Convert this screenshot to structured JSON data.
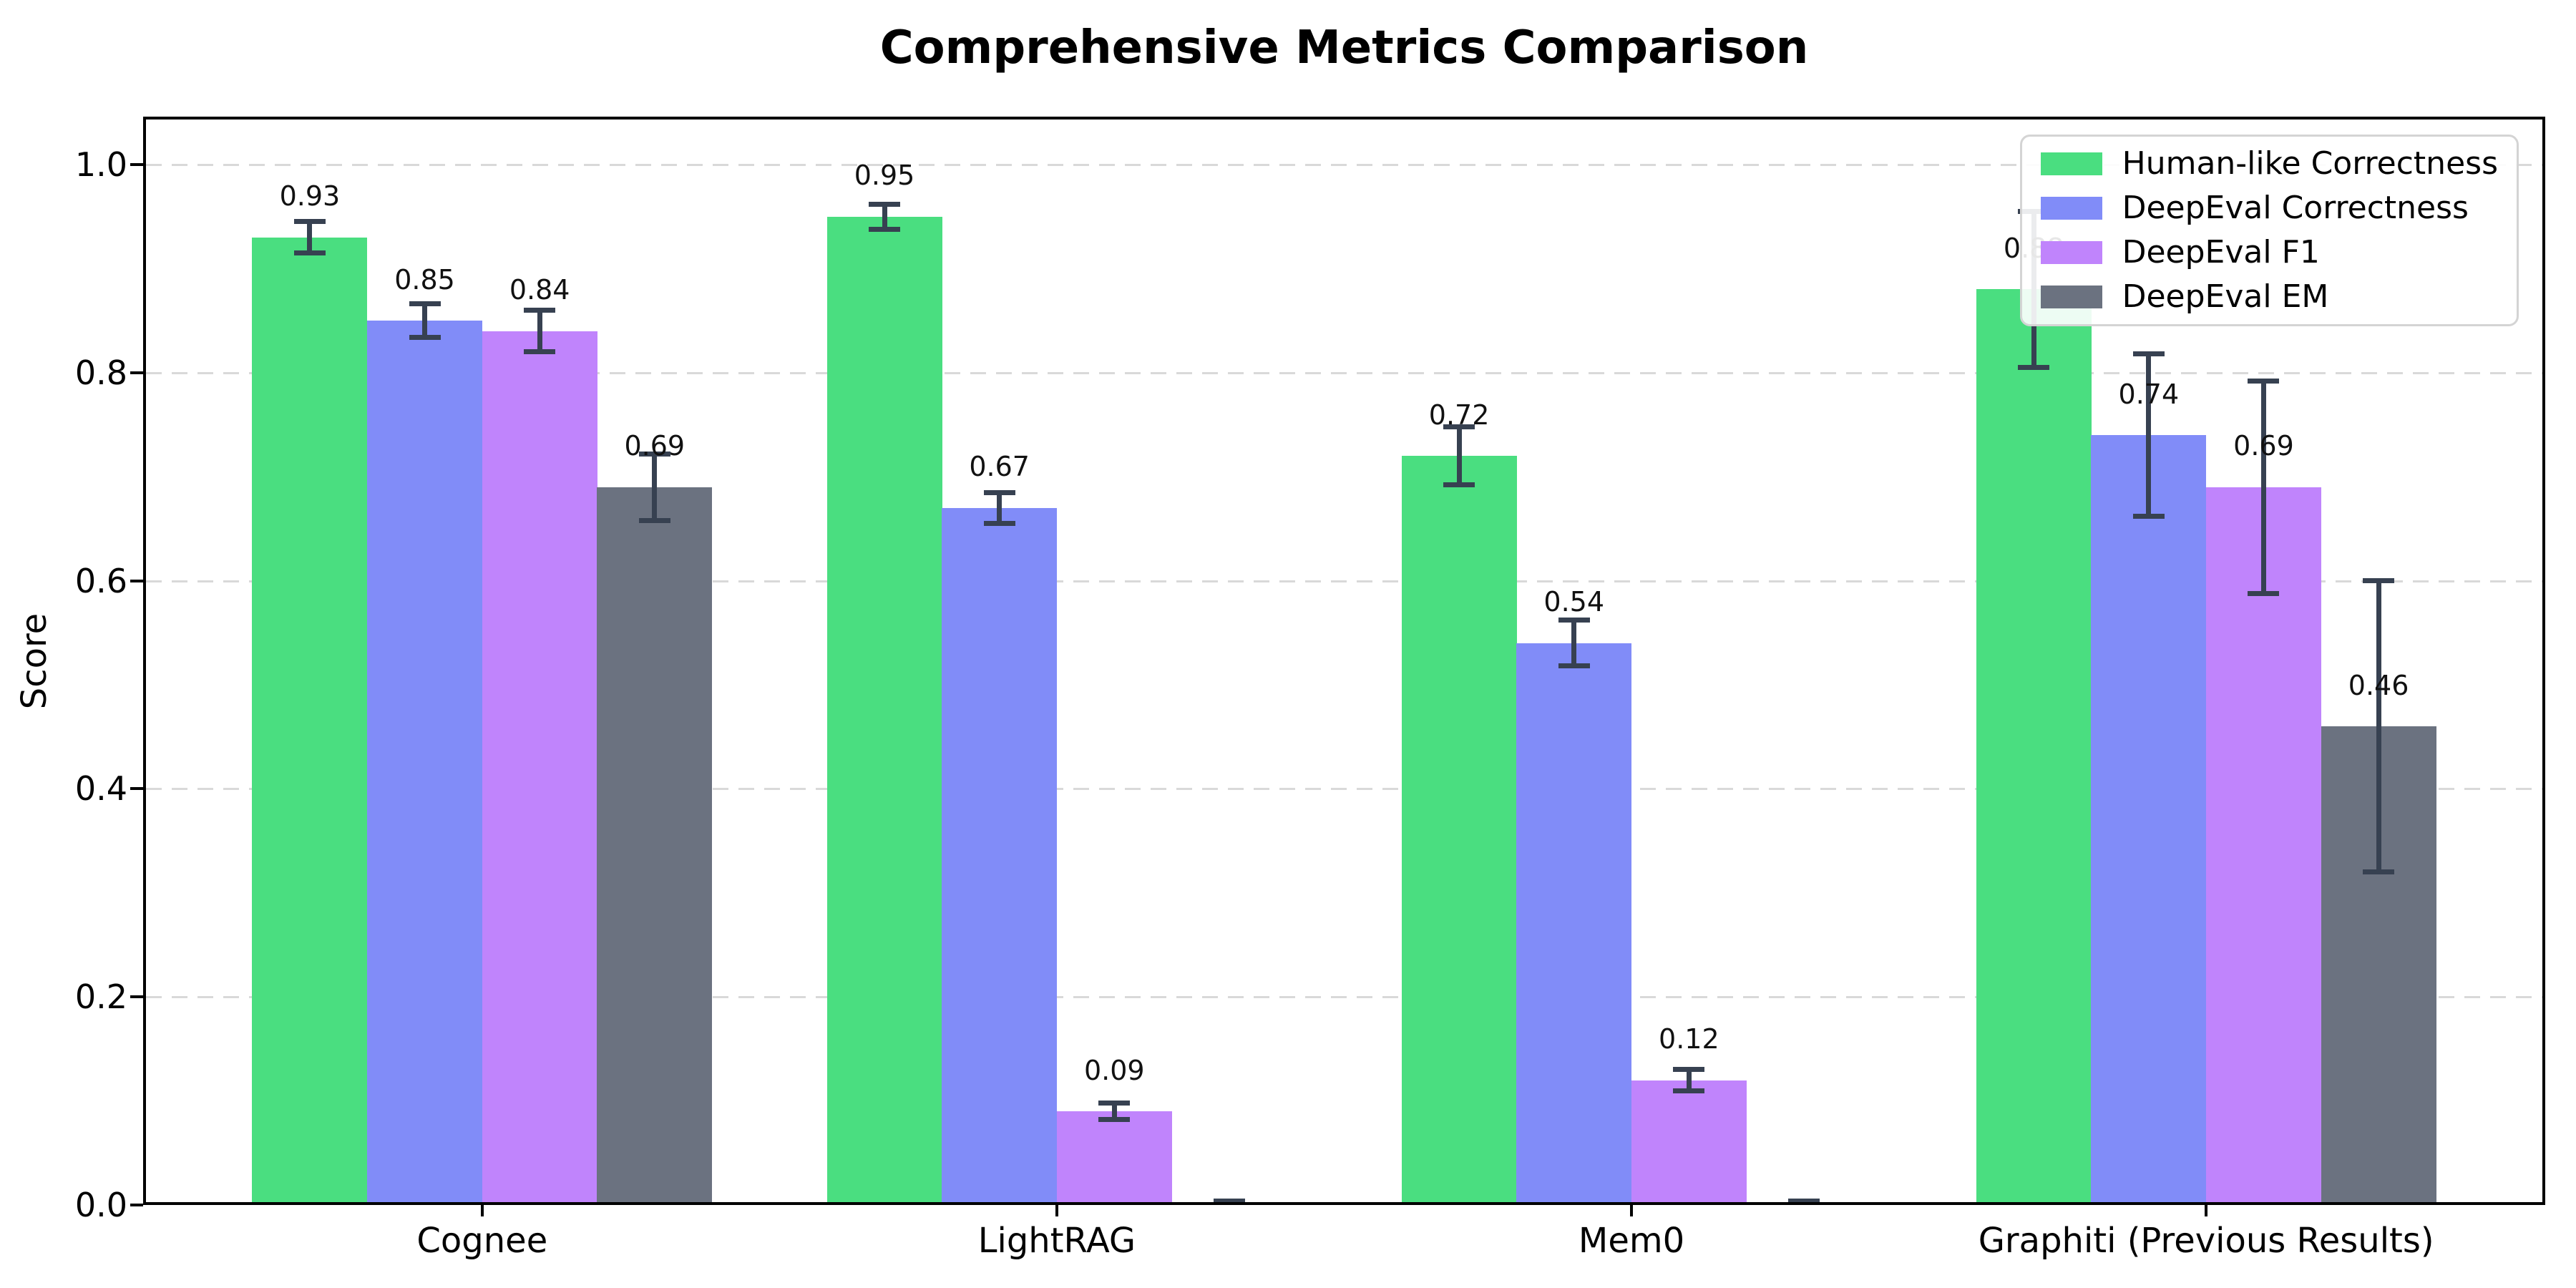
{
  "title": "Comprehensive Metrics Comparison",
  "axes": {
    "ylabel": "Score",
    "yticks": [
      "0.0",
      "0.2",
      "0.4",
      "0.6",
      "0.8",
      "1.0"
    ]
  },
  "chart_data": {
    "type": "bar",
    "title": "Comprehensive Metrics Comparison",
    "xlabel": "",
    "ylabel": "Score",
    "ylim": [
      0,
      1.046
    ],
    "yticks": [
      0.0,
      0.2,
      0.4,
      0.6,
      0.8,
      1.0
    ],
    "grid": "horizontal-dashed",
    "legend_position": "upper-right",
    "error_bar_color": "#374151",
    "categories": [
      "Cognee",
      "LightRAG",
      "Mem0",
      "Graphiti (Previous Results)"
    ],
    "series": [
      {
        "name": "Human-like Correctness",
        "color": "#4ade80",
        "values": [
          0.93,
          0.95,
          0.72,
          0.88
        ],
        "errors": [
          0.015,
          0.012,
          0.028,
          0.075
        ],
        "labels": [
          "0.93",
          "0.95",
          "0.72",
          "0.88"
        ]
      },
      {
        "name": "DeepEval Correctness",
        "color": "#818cf8",
        "values": [
          0.85,
          0.67,
          0.54,
          0.74
        ],
        "errors": [
          0.016,
          0.015,
          0.022,
          0.078
        ],
        "labels": [
          "0.85",
          "0.67",
          "0.54",
          "0.74"
        ]
      },
      {
        "name": "DeepEval F1",
        "color": "#c084fc",
        "values": [
          0.84,
          0.09,
          0.12,
          0.69
        ],
        "errors": [
          0.02,
          0.008,
          0.01,
          0.102
        ],
        "labels": [
          "0.84",
          "0.09",
          "0.12",
          "0.69"
        ]
      },
      {
        "name": "DeepEval EM",
        "color": "#6b7280",
        "values": [
          0.69,
          0.0,
          0.0,
          0.46
        ],
        "errors": [
          0.032,
          0.004,
          0.004,
          0.14
        ],
        "labels": [
          "0.69",
          "",
          "",
          "0.46"
        ]
      }
    ]
  }
}
